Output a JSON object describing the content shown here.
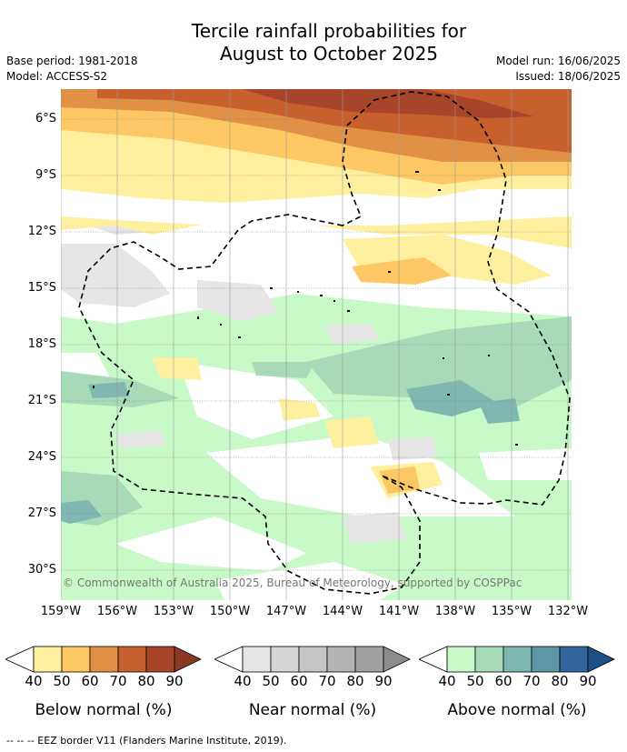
{
  "title_line1": "Tercile rainfall probabilities for",
  "title_line2": "August to October 2025",
  "base_period": "Base period: 1981-2018",
  "model": "Model: ACCESS-S2",
  "model_run": "Model run: 16/06/2025",
  "issued": "Issued: 18/06/2025",
  "lat_labels": [
    "6°S",
    "9°S",
    "12°S",
    "15°S",
    "18°S",
    "21°S",
    "24°S",
    "27°S",
    "30°S"
  ],
  "lon_labels": [
    "159°W",
    "156°W",
    "153°W",
    "150°W",
    "147°W",
    "144°W",
    "141°W",
    "138°W",
    "135°W",
    "132°W"
  ],
  "copyright": "© Commonwealth of Australia 2025, Bureau of Meteorology, supported by COSPPac",
  "legend": [
    {
      "title": "Below normal (%)",
      "ticks": [
        "40",
        "50",
        "60",
        "70",
        "80",
        "90"
      ],
      "colors": [
        "#fff0a0",
        "#fdc864",
        "#e09145",
        "#c8602e",
        "#a6452a",
        "#8a3a22"
      ]
    },
    {
      "title": "Near normal (%)",
      "ticks": [
        "40",
        "50",
        "60",
        "70",
        "80",
        "90"
      ],
      "colors": [
        "#e6e6e6",
        "#d6d6d6",
        "#c5c5c5",
        "#b4b4b4",
        "#a0a0a0",
        "#8c8c8c"
      ]
    },
    {
      "title": "Above normal (%)",
      "ticks": [
        "40",
        "50",
        "60",
        "70",
        "80",
        "90"
      ],
      "colors": [
        "#c8fac8",
        "#a6dab8",
        "#7fb8b0",
        "#5e96a6",
        "#33669c",
        "#1d4f86"
      ]
    }
  ],
  "footnote": "-- -- -- EEZ border V11 (Flanders Marine Institute, 2019)."
}
